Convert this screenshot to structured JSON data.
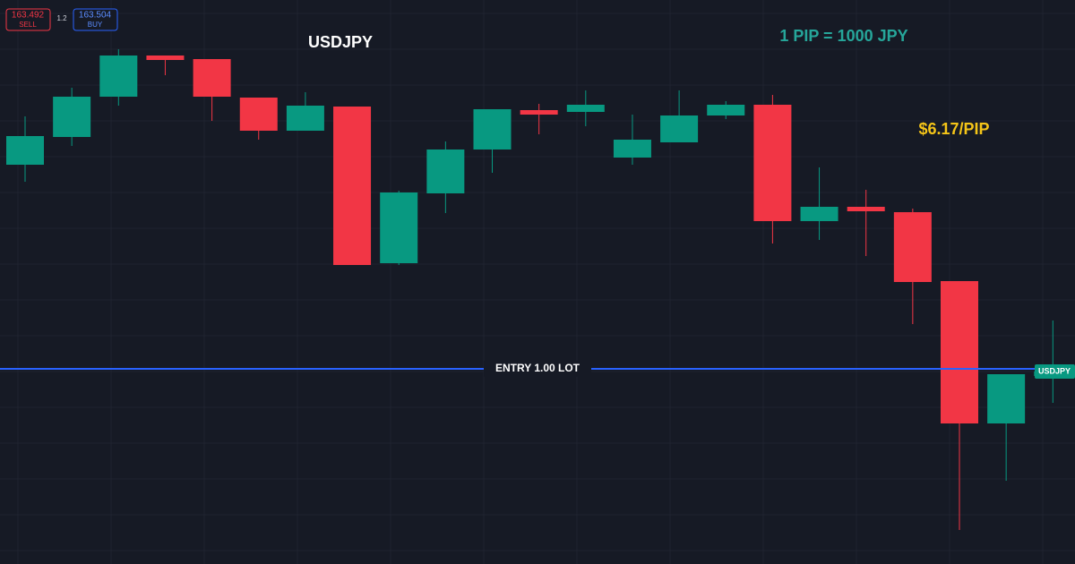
{
  "chart_data": {
    "type": "candlestick",
    "title": "USDJPY",
    "annotations": [
      "1 PIP = 1000 JPY",
      "$6.17/PIP"
    ],
    "entry": 163.57,
    "entry_label": "ENTRY 1.00 LOT",
    "price_tag": "USDJPY",
    "trade_panel": {
      "sell_price": "163.492",
      "sell_label": "SELL",
      "quantity": "1.2",
      "buy_price": "163.504",
      "buy_label": "BUY"
    },
    "ylim": [
      163.025,
      164.6
    ],
    "up_color": "#089981",
    "down_color": "#f23645",
    "entry_color": "#2962ff",
    "open": [
      164.14,
      164.2175,
      164.33,
      164.445,
      164.435,
      164.3275,
      164.235,
      164.3025,
      163.865,
      164.06,
      164.1825,
      164.2925,
      164.2875,
      164.16,
      164.2025,
      164.2775,
      164.3075,
      163.9825,
      164.0225,
      164.0075,
      163.815,
      163.4175,
      163.55
    ],
    "high": [
      164.275,
      164.355,
      164.4625,
      164.445,
      164.435,
      164.3275,
      164.3425,
      164.3025,
      164.0675,
      164.205,
      164.295,
      164.31,
      164.3475,
      164.28,
      164.3475,
      164.3175,
      164.335,
      164.1325,
      164.07,
      164.0175,
      163.815,
      163.555,
      163.705
    ],
    "low": [
      164.0925,
      164.1925,
      164.305,
      164.39,
      164.2625,
      164.21,
      164.235,
      163.86,
      163.86,
      164.005,
      164.1175,
      164.225,
      164.2475,
      164.14,
      164.2025,
      164.2675,
      163.92,
      163.93,
      163.885,
      163.695,
      163.12,
      163.2575,
      163.475
    ],
    "close": [
      164.22,
      164.33,
      164.445,
      164.4325,
      164.33,
      164.235,
      164.305,
      163.86,
      164.0625,
      164.1825,
      164.295,
      164.28,
      164.3075,
      164.21,
      164.2775,
      164.3075,
      163.9825,
      164.0225,
      164.01,
      163.8125,
      163.4175,
      163.555,
      163.5625
    ]
  }
}
